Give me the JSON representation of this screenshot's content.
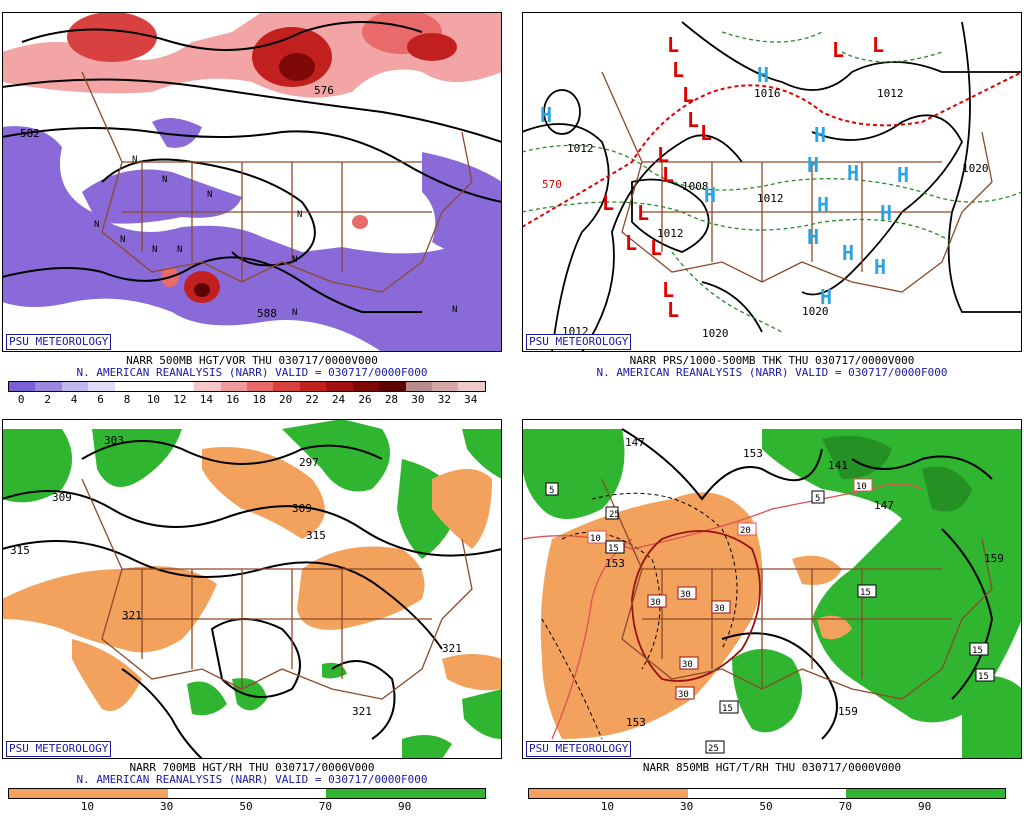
{
  "panels": [
    {
      "badge": "PSU METEOROLOGY",
      "line1": "NARR 500MB HGT/VOR THU 030717/0000V000",
      "line2": "N. AMERICAN REANALYSIS (NARR) VALID = 030717/0000F000",
      "legend_colors": [
        "#7b5fd6",
        "#9b87e0",
        "#c2b6ee",
        "#e2ddf7",
        "#ffffff",
        "#ffffff",
        "#ffffff",
        "#f7c7c7",
        "#f09b9b",
        "#e86a6a",
        "#d94141",
        "#c21f1f",
        "#a01010",
        "#7e0808",
        "#5e0404",
        "#b88c8c",
        "#d4a7a7",
        "#eccaca"
      ],
      "legend_ticks": [
        "0",
        "2",
        "4",
        "6",
        "8",
        "10",
        "12",
        "14",
        "16",
        "18",
        "20",
        "22",
        "24",
        "26",
        "28",
        "30",
        "32",
        "34"
      ],
      "contour_labels": [
        "582",
        "576",
        "588"
      ]
    },
    {
      "badge": "PSU METEOROLOGY",
      "line1": "NARR PRS/1000-500MB THK THU 030717/0000V000",
      "line2": "N. AMERICAN REANALYSIS (NARR) VALID = 030717/0000F000",
      "contour_labels": [
        "1012",
        "1016",
        "1020",
        "1012",
        "1012",
        "1012",
        "1020",
        "1008",
        "1020",
        "1012"
      ],
      "thickness_label": "570",
      "high_symbol": "H",
      "low_symbol": "L"
    },
    {
      "badge": "PSU METEOROLOGY",
      "line1": "NARR 700MB HGT/RH THU 030717/0000V000",
      "line2": "N. AMERICAN REANALYSIS (NARR) VALID = 030717/0000F000",
      "legend_colors": [
        "#f2a25c",
        "#f2a25c",
        "#ffffff",
        "#ffffff",
        "#2fb52f",
        "#2fb52f"
      ],
      "legend_ticks": [
        "10",
        "30",
        "50",
        "70",
        "90"
      ],
      "contour_labels": [
        "303",
        "309",
        "315",
        "321",
        "297",
        "309",
        "315",
        "321",
        "321"
      ]
    },
    {
      "badge": "PSU METEOROLOGY",
      "line1": "NARR 850MB HGT/T/RH THU 030717/0000V000",
      "line2": "",
      "legend_colors": [
        "#f2a25c",
        "#f2a25c",
        "#ffffff",
        "#ffffff",
        "#2fb52f",
        "#2fb52f"
      ],
      "legend_ticks": [
        "10",
        "30",
        "50",
        "70",
        "90"
      ],
      "height_labels": [
        "147",
        "153",
        "141",
        "147",
        "153",
        "159",
        "153",
        "159"
      ],
      "temp_labels": [
        "5",
        "10",
        "15",
        "20",
        "25",
        "30",
        "30",
        "30",
        "30",
        "30",
        "15",
        "15",
        "15",
        "15",
        "10",
        "5",
        "25"
      ]
    }
  ],
  "colors": {
    "border": "#8b4a2b",
    "purple": "#8a6ad8",
    "red": "#e05050",
    "darkred": "#9a1010",
    "orange": "#f2a25c",
    "green": "#2fb52f",
    "darkgreen": "#1f7a1f",
    "blue_h": "#2ba5e0",
    "red_l": "#e00000"
  }
}
